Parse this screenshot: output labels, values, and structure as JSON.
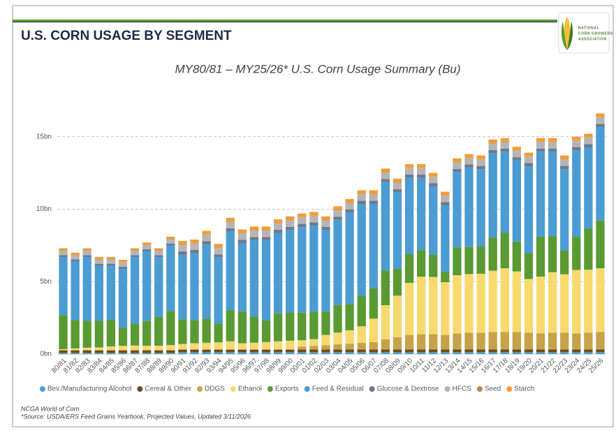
{
  "logo": {
    "lines": [
      "NATIONAL",
      "CORN GROWERS",
      "ASSOCIATION"
    ]
  },
  "chart_data": {
    "type": "stacked_bar",
    "header": "U.S. CORN USAGE BY SEGMENT",
    "title": "MY80/81 – MY25/26* U.S. Corn Usage Summary (Bu)",
    "notes": [
      "NCGA World of Corn",
      "*Source: USDA/ERS Feed Grains Yearbook, Projected Values, Updated 3/11/2026"
    ],
    "categories": [
      "80/81",
      "81/82",
      "82/83",
      "83/84",
      "84/85",
      "85/86",
      "86/87",
      "87/88",
      "88/89",
      "89/90",
      "90/91",
      "91/92",
      "92/93",
      "93/94",
      "94/95",
      "95/96",
      "96/97",
      "97/98",
      "98/99",
      "99/00",
      "00/01",
      "01/02",
      "02/03",
      "03/04",
      "04/05",
      "05/06",
      "06/07",
      "07/08",
      "08/09",
      "09/10",
      "10/11",
      "11/12",
      "12/13",
      "13/14",
      "14/15",
      "15/16",
      "16/17",
      "17/18",
      "18/19",
      "19/20",
      "20/21",
      "21/22",
      "22/23",
      "23/24",
      "24/25",
      "25/26"
    ],
    "ylim": [
      0,
      17.2
    ],
    "yticks": [
      {
        "value": 0,
        "label": "0bn"
      },
      {
        "value": 5,
        "label": "5bn"
      },
      {
        "value": 10,
        "label": "10bn"
      },
      {
        "value": 15,
        "label": "15bn"
      }
    ],
    "grid": true,
    "legend": "bottom",
    "series": [
      {
        "name": "Bev./Manufacturing Alcohol",
        "color": "#4a9fd4",
        "values": [
          0.08,
          0.08,
          0.08,
          0.08,
          0.08,
          0.08,
          0.08,
          0.08,
          0.08,
          0.08,
          0.13,
          0.13,
          0.13,
          0.13,
          0.13,
          0.13,
          0.13,
          0.13,
          0.13,
          0.13,
          0.13,
          0.13,
          0.13,
          0.13,
          0.13,
          0.13,
          0.13,
          0.13,
          0.13,
          0.13,
          0.13,
          0.13,
          0.13,
          0.13,
          0.13,
          0.13,
          0.13,
          0.13,
          0.13,
          0.13,
          0.13,
          0.13,
          0.13,
          0.13,
          0.13,
          0.13
        ]
      },
      {
        "name": "Cereal & Other",
        "color": "#6b4c1e",
        "values": [
          0.17,
          0.17,
          0.17,
          0.17,
          0.17,
          0.17,
          0.17,
          0.17,
          0.17,
          0.17,
          0.17,
          0.17,
          0.17,
          0.17,
          0.17,
          0.17,
          0.17,
          0.17,
          0.17,
          0.17,
          0.19,
          0.19,
          0.19,
          0.19,
          0.19,
          0.19,
          0.19,
          0.19,
          0.19,
          0.19,
          0.19,
          0.19,
          0.19,
          0.19,
          0.19,
          0.19,
          0.19,
          0.19,
          0.19,
          0.19,
          0.19,
          0.19,
          0.19,
          0.19,
          0.19,
          0.19
        ]
      },
      {
        "name": "DDGS",
        "color": "#c8a24a",
        "values": [
          0.05,
          0.05,
          0.05,
          0.05,
          0.05,
          0.05,
          0.05,
          0.05,
          0.05,
          0.05,
          0.05,
          0.05,
          0.05,
          0.05,
          0.05,
          0.05,
          0.05,
          0.05,
          0.05,
          0.05,
          0.2,
          0.25,
          0.3,
          0.35,
          0.4,
          0.45,
          0.5,
          0.7,
          0.85,
          1.0,
          1.05,
          1.05,
          1.0,
          1.1,
          1.15,
          1.15,
          1.2,
          1.2,
          1.2,
          1.15,
          1.1,
          1.15,
          1.15,
          1.1,
          1.15,
          1.2
        ]
      },
      {
        "name": "Ethanol",
        "color": "#f7d96e",
        "values": [
          0.04,
          0.09,
          0.14,
          0.16,
          0.23,
          0.27,
          0.29,
          0.28,
          0.28,
          0.32,
          0.35,
          0.4,
          0.43,
          0.46,
          0.53,
          0.4,
          0.43,
          0.48,
          0.53,
          0.57,
          0.43,
          0.46,
          0.7,
          0.82,
          0.92,
          1.15,
          1.62,
          2.35,
          2.86,
          3.59,
          3.97,
          3.95,
          3.64,
          4.02,
          4.05,
          4.07,
          4.23,
          4.4,
          4.18,
          3.71,
          3.93,
          4.18,
          4.03,
          4.38,
          4.35,
          4.4
        ]
      },
      {
        "name": "Exports",
        "color": "#5a9a32",
        "values": [
          2.35,
          1.95,
          1.85,
          1.85,
          1.85,
          1.25,
          1.5,
          1.7,
          2.0,
          2.35,
          1.7,
          1.6,
          1.65,
          1.3,
          2.15,
          2.2,
          1.8,
          1.5,
          1.95,
          1.95,
          1.9,
          1.9,
          1.6,
          1.9,
          1.8,
          2.1,
          2.1,
          2.4,
          1.85,
          1.98,
          1.83,
          1.54,
          0.73,
          1.92,
          1.86,
          1.9,
          2.29,
          2.44,
          2.07,
          1.78,
          2.75,
          2.47,
          1.66,
          2.29,
          2.85,
          3.3
        ]
      },
      {
        "name": "Feed & Residual",
        "color": "#4b9cd3",
        "values": [
          3.99,
          4.04,
          4.39,
          3.77,
          3.7,
          4.06,
          4.59,
          4.8,
          4.1,
          4.51,
          4.46,
          4.61,
          5.13,
          4.55,
          5.43,
          4.71,
          5.28,
          5.53,
          5.53,
          5.69,
          5.91,
          5.93,
          5.64,
          5.87,
          6.32,
          6.34,
          5.82,
          6.09,
          5.28,
          5.27,
          4.99,
          4.7,
          4.57,
          5.2,
          5.48,
          5.32,
          5.82,
          5.6,
          5.59,
          6.0,
          5.86,
          5.84,
          5.6,
          5.97,
          5.59,
          6.44
        ]
      },
      {
        "name": "Glucose & Dextrose",
        "color": "#6b7a8f",
        "values": [
          0.15,
          0.15,
          0.15,
          0.15,
          0.15,
          0.15,
          0.15,
          0.15,
          0.15,
          0.15,
          0.22,
          0.22,
          0.22,
          0.22,
          0.22,
          0.22,
          0.22,
          0.22,
          0.22,
          0.22,
          0.22,
          0.22,
          0.22,
          0.22,
          0.22,
          0.22,
          0.22,
          0.22,
          0.22,
          0.22,
          0.22,
          0.22,
          0.22,
          0.22,
          0.22,
          0.22,
          0.22,
          0.22,
          0.22,
          0.22,
          0.22,
          0.22,
          0.22,
          0.22,
          0.22,
          0.22
        ]
      },
      {
        "name": "HFCS",
        "color": "#b5b5b5",
        "values": [
          0.3,
          0.3,
          0.3,
          0.3,
          0.3,
          0.3,
          0.3,
          0.3,
          0.3,
          0.3,
          0.45,
          0.45,
          0.45,
          0.45,
          0.45,
          0.45,
          0.45,
          0.45,
          0.45,
          0.45,
          0.45,
          0.45,
          0.45,
          0.45,
          0.45,
          0.45,
          0.45,
          0.45,
          0.45,
          0.45,
          0.45,
          0.45,
          0.45,
          0.45,
          0.45,
          0.45,
          0.45,
          0.45,
          0.45,
          0.45,
          0.45,
          0.45,
          0.45,
          0.45,
          0.45,
          0.45
        ]
      },
      {
        "name": "Seed",
        "color": "#b8864b",
        "values": [
          0.02,
          0.02,
          0.02,
          0.02,
          0.02,
          0.02,
          0.02,
          0.02,
          0.02,
          0.02,
          0.02,
          0.02,
          0.02,
          0.02,
          0.02,
          0.02,
          0.02,
          0.02,
          0.02,
          0.02,
          0.02,
          0.02,
          0.02,
          0.02,
          0.02,
          0.02,
          0.02,
          0.02,
          0.02,
          0.02,
          0.02,
          0.02,
          0.02,
          0.02,
          0.02,
          0.02,
          0.02,
          0.02,
          0.02,
          0.02,
          0.02,
          0.02,
          0.02,
          0.02,
          0.02,
          0.02
        ]
      },
      {
        "name": "Starch",
        "color": "#f39c34",
        "values": [
          0.15,
          0.15,
          0.15,
          0.15,
          0.15,
          0.15,
          0.15,
          0.15,
          0.15,
          0.15,
          0.25,
          0.25,
          0.25,
          0.25,
          0.25,
          0.25,
          0.25,
          0.25,
          0.25,
          0.25,
          0.25,
          0.25,
          0.25,
          0.25,
          0.25,
          0.25,
          0.25,
          0.25,
          0.25,
          0.25,
          0.25,
          0.25,
          0.25,
          0.25,
          0.25,
          0.25,
          0.25,
          0.25,
          0.25,
          0.25,
          0.25,
          0.25,
          0.25,
          0.25,
          0.25,
          0.25
        ]
      }
    ]
  }
}
